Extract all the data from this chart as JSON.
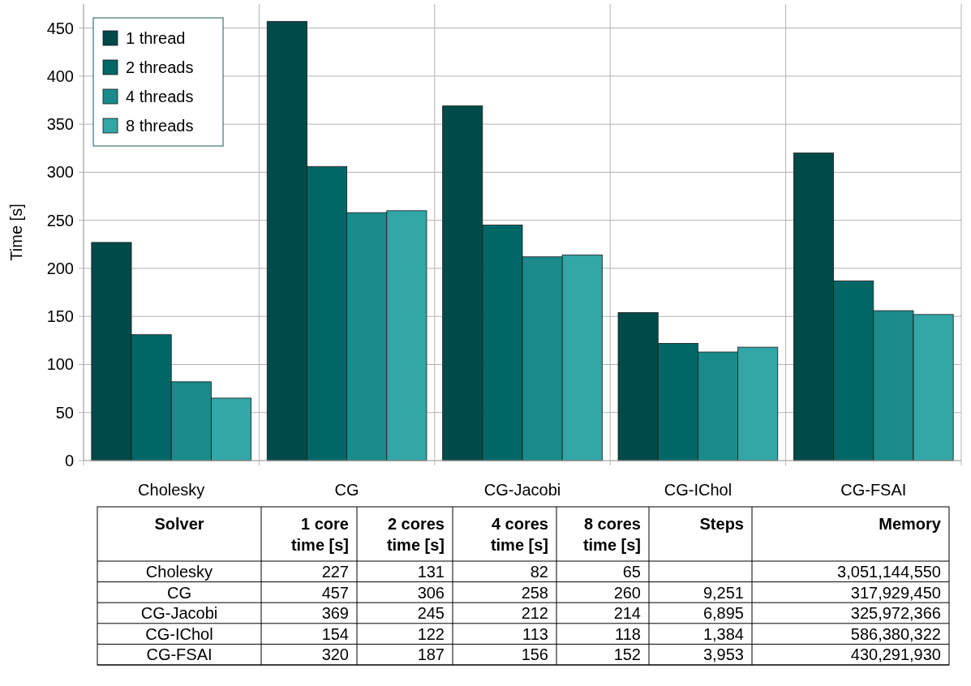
{
  "chart_data": [
    {
      "type": "bar",
      "ylabel": "Time [s]",
      "categories": [
        "Cholesky",
        "CG",
        "CG-Jacobi",
        "CG-IChol",
        "CG-FSAI"
      ],
      "series": [
        {
          "name": "1 thread",
          "color": "#004a4a",
          "values": [
            227,
            457,
            369,
            154,
            320
          ]
        },
        {
          "name": "2 threads",
          "color": "#006666",
          "values": [
            131,
            306,
            245,
            122,
            187
          ]
        },
        {
          "name": "4 threads",
          "color": "#1a8a8a",
          "values": [
            82,
            258,
            212,
            113,
            156
          ]
        },
        {
          "name": "8 threads",
          "color": "#33a6a6",
          "values": [
            65,
            260,
            214,
            118,
            152
          ]
        }
      ],
      "ylim": [
        0,
        475
      ],
      "yticks": [
        0,
        50,
        100,
        150,
        200,
        250,
        300,
        350,
        400,
        450
      ],
      "grid": true,
      "legend": "top left"
    },
    {
      "type": "other",
      "xlabel": "Solver",
      "categories": [
        "Cholesky",
        "CG",
        "CG-Jacobi",
        "CG-IChol",
        "CG-FSAI"
      ],
      "data_labels": true,
      "series": [
        {
          "name": "1 core time [s]",
          "values": [
            227,
            457,
            369,
            154,
            320
          ],
          "value_labels": [
            "227",
            "457",
            "369",
            "154",
            "320"
          ]
        },
        {
          "name": "2 cores time [s]",
          "values": [
            131,
            306,
            245,
            122,
            187
          ],
          "value_labels": [
            "131",
            "306",
            "245",
            "122",
            "187"
          ]
        },
        {
          "name": "4 cores time [s]",
          "values": [
            82,
            258,
            212,
            113,
            156
          ],
          "value_labels": [
            "82",
            "258",
            "212",
            "113",
            "156"
          ]
        },
        {
          "name": "8 cores time [s]",
          "values": [
            65,
            260,
            214,
            118,
            152
          ],
          "value_labels": [
            "65",
            "260",
            "214",
            "118",
            "152"
          ]
        },
        {
          "name": "Steps",
          "values": [
            null,
            9251,
            6895,
            1384,
            3953
          ],
          "value_labels": [
            null,
            "9,251",
            "6,895",
            "1,384",
            "3,953"
          ]
        },
        {
          "name": "Memory",
          "values": [
            3051144550,
            317929450,
            325972366,
            586380322,
            430291930
          ],
          "value_labels": [
            "3,051,144,550",
            "317,929,450",
            "325,972,366",
            "586,380,322",
            "430,291,930"
          ]
        }
      ]
    }
  ]
}
